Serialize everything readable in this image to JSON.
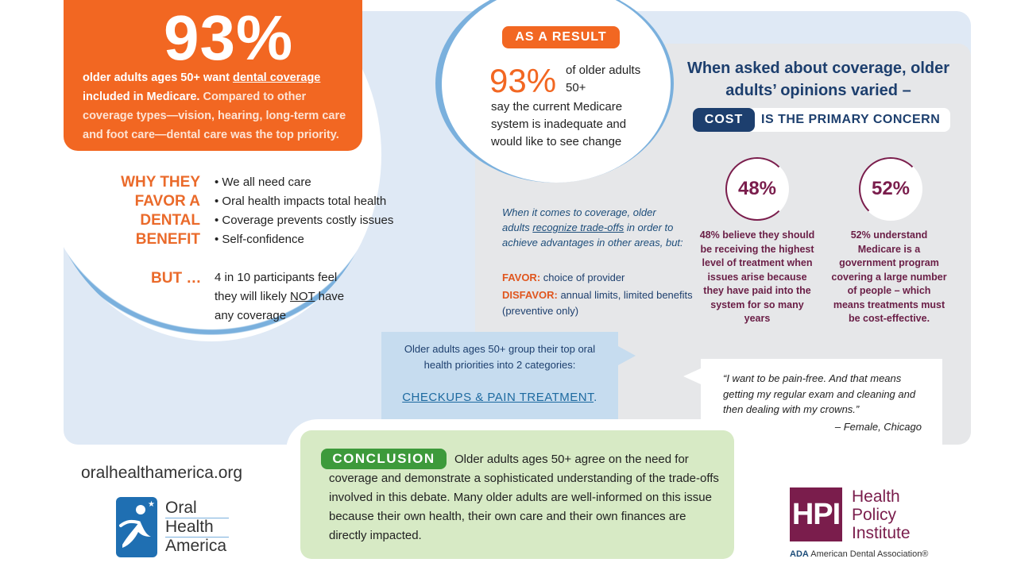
{
  "main_stat": {
    "value": "93%",
    "line1_prefix": "older adults ages 50+ want ",
    "line1_link": "dental coverage",
    "line2": "included in Medicare.",
    "rest": " Compared to other coverage types—vision, hearing, long-term care and foot care—dental care was the top priority."
  },
  "why": {
    "heading_lines": [
      "WHY THEY",
      "FAVOR A",
      "DENTAL",
      "BENEFIT"
    ],
    "reasons": [
      "• We all need care",
      "• Oral health impacts total health",
      "• Coverage prevents costly issues",
      "• Self-confidence"
    ]
  },
  "but": {
    "label": "BUT …",
    "text_a": "4 in 10 participants feel they will likely ",
    "text_not": "NOT",
    "text_b": " have any coverage"
  },
  "result": {
    "tag": "AS A RESULT",
    "value": "93%",
    "side_text": "of older adults 50+",
    "text": "say the current Medicare system is inadequate and would like to see change"
  },
  "coverage": {
    "heading": "When asked about coverage, older adults’ opinions varied –",
    "cost_tag": "COST",
    "cost_rest": "IS THE PRIMARY CONCERN",
    "stat48": {
      "value": "48%",
      "text": "48% believe they should be receiving the highest level of treatment when issues arise because they have paid into the system for so many years"
    },
    "stat52": {
      "value": "52%",
      "text": "52% understand Medicare is a government program covering a large number of people – which means treatments must be cost-effective."
    }
  },
  "tradeoffs": {
    "intro_a": "When it comes to coverage, older adults ",
    "intro_link": "recognize trade-offs",
    "intro_b": " in order to achieve advantages in other areas, but:",
    "favor_label": "FAVOR:",
    "favor_text": " choice of provider",
    "disfavor_label": "DISFAVOR:",
    "disfavor_text": " annual limits, limited benefits (preventive only)"
  },
  "callout": {
    "text": "Older adults ages 50+ group their top oral health priorities into 2 categories:",
    "highlight": "CHECKUPS & PAIN TREATMENT",
    "highlight_end": "."
  },
  "quote": {
    "text": "“I want to be pain-free. And that means getting my regular exam and cleaning and then dealing with my crowns.”",
    "attribution": "– Female, Chicago"
  },
  "conclusion": {
    "tag": "CONCLUSION",
    "text": "Older adults ages 50+ agree on the need for coverage and demonstrate a sophisticated understanding of the trade-offs involved in this debate. Many older adults are well-informed on this issue because their own health, their own care and their own finances are directly impacted."
  },
  "footer": {
    "url": "oralhealthamerica.org",
    "oha_lines": [
      "Oral",
      "Health",
      "America"
    ],
    "hpi_abbr": "HPI",
    "hpi_lines": [
      "Health",
      "Policy",
      "Institute"
    ],
    "ada_abbr": "ADA",
    "ada_name": " American Dental Association®"
  },
  "colors": {
    "orange": "#f26722",
    "navy": "#1d3f6e",
    "plum": "#7a1d4c",
    "green": "#3d9a3b",
    "light_blue": "#dfe9f5"
  }
}
